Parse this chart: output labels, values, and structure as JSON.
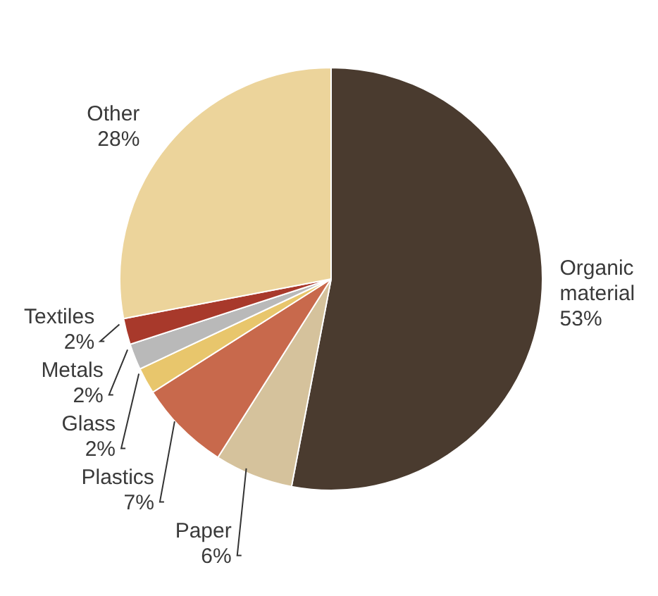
{
  "chart_data": {
    "type": "pie",
    "categories": [
      "Organic material",
      "Paper",
      "Plastics",
      "Glass",
      "Metals",
      "Textiles",
      "Other"
    ],
    "values": [
      53,
      6,
      7,
      2,
      2,
      2,
      28
    ],
    "value_labels": [
      "53%",
      "6%",
      "7%",
      "2%",
      "2%",
      "2%",
      "28%"
    ],
    "colors": [
      "#4a3b2f",
      "#d5c29c",
      "#c8694c",
      "#e8c66c",
      "#b9b9b9",
      "#a8392b",
      "#ecd49b"
    ],
    "legend": false
  }
}
